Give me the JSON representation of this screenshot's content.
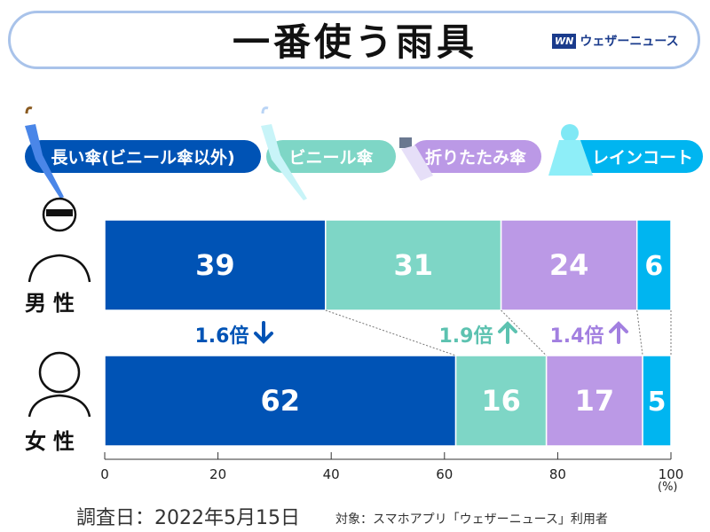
{
  "title": "一番使う雨具",
  "logo": {
    "mark": "WN",
    "text": "ウェザーニュース"
  },
  "chart_data": {
    "type": "bar",
    "orientation": "horizontal",
    "stacked": true,
    "categories": [
      "男性",
      "女性"
    ],
    "series": [
      {
        "name": "長い傘(ビニール傘以外)",
        "values": [
          39,
          62
        ],
        "color": "#0053b5"
      },
      {
        "name": "ビニール傘",
        "values": [
          31,
          16
        ],
        "color": "#7ed6c6"
      },
      {
        "name": "折りたたみ傘",
        "values": [
          24,
          17
        ],
        "color": "#bb99e6"
      },
      {
        "name": "レインコート",
        "values": [
          6,
          5
        ],
        "color": "#00b5f0"
      }
    ],
    "xlim": [
      0,
      100
    ],
    "xticks": [
      "0",
      "20",
      "40",
      "60",
      "80",
      "100"
    ],
    "xunit": "(%)",
    "legend": "top",
    "annotations": [
      {
        "text": "1.6倍",
        "direction": "down",
        "color": "#0053b5"
      },
      {
        "text": "1.9倍",
        "direction": "up",
        "color": "#5cc2b0"
      },
      {
        "text": "1.4倍",
        "direction": "up",
        "color": "#a27fe0"
      }
    ]
  },
  "footer": {
    "date": "調査日：2022年5月15日",
    "target": "対象：スマホアプリ「ウェザーニュース」利用者"
  }
}
